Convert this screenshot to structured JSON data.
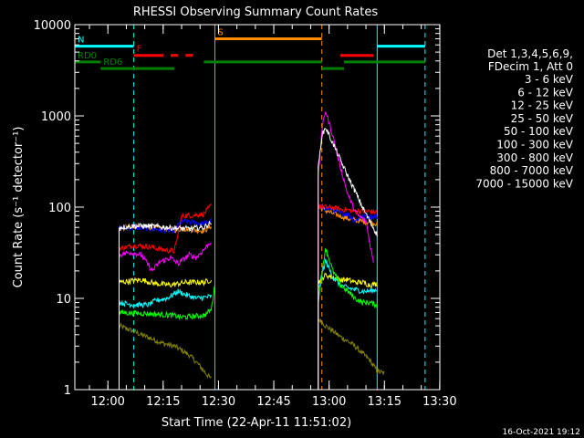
{
  "chart_data": {
    "type": "line",
    "title": "RHESSI Observing Summary Count Rates",
    "xlabel": "Start Time (22-Apr-11 11:51:02)",
    "ylabel": "Count Rate (s⁻¹ detector⁻¹)",
    "ylog": true,
    "ylim": [
      1,
      10000
    ],
    "xlim_minutes": [
      0,
      99
    ],
    "y_tick_labels": [
      "1",
      "10",
      "100",
      "1000",
      "10000"
    ],
    "x_tick_labels": [
      "12:00",
      "12:15",
      "12:30",
      "12:45",
      "13:00",
      "13:15",
      "13:30"
    ],
    "legend_header": [
      "Det 1,3,4,5,6,9,",
      "FDecim 1, Att 0"
    ],
    "footer_date": "16-Oct-2021 19:12",
    "flags": [
      {
        "label": "N",
        "color": "#00ffff",
        "value": 5800,
        "segments": [
          [
            0,
            16
          ],
          [
            82,
            95
          ]
        ]
      },
      {
        "label": "F",
        "color": "#ff0000",
        "value": 4600,
        "segments": [
          [
            16,
            24
          ],
          [
            26,
            28
          ],
          [
            30,
            32
          ],
          [
            72,
            81
          ]
        ]
      },
      {
        "label": "S",
        "color": "#ff8c00",
        "value": 7000,
        "segments": [
          [
            38,
            67
          ]
        ]
      },
      {
        "label": "RD0",
        "color": "#008000",
        "value": 3900,
        "segments": [
          [
            0,
            7
          ],
          [
            35,
            67
          ],
          [
            73,
            95
          ]
        ]
      },
      {
        "label": "RD6",
        "color": "#008000",
        "value": 3300,
        "segments": [
          [
            7,
            27
          ],
          [
            67,
            73
          ]
        ]
      }
    ],
    "verticals": [
      {
        "minute": 0,
        "color": "#00ffff",
        "dashed": false
      },
      {
        "minute": 16,
        "color": "#00ffff",
        "dashed": true
      },
      {
        "minute": 38,
        "color": "#ff8c00",
        "dashed": false
      },
      {
        "minute": 67,
        "color": "#ff8c00",
        "dashed": true
      },
      {
        "minute": 82,
        "color": "#00ffff",
        "dashed": false
      },
      {
        "minute": 95,
        "color": "#00ffff",
        "dashed": true
      }
    ],
    "series": [
      {
        "name": "3 - 6 keV",
        "color": "#ffffff",
        "seg1": [
          [
            12,
            60
          ],
          [
            16,
            62
          ],
          [
            20,
            62
          ],
          [
            25,
            60
          ],
          [
            30,
            58
          ],
          [
            35,
            60
          ],
          [
            37,
            68
          ]
        ],
        "seg2": [
          [
            66,
            260
          ],
          [
            67,
            600
          ],
          [
            68,
            750
          ],
          [
            70,
            500
          ],
          [
            72,
            330
          ],
          [
            74,
            220
          ],
          [
            76,
            150
          ],
          [
            78,
            100
          ],
          [
            80,
            70
          ],
          [
            82,
            50
          ]
        ]
      },
      {
        "name": "6 - 12 keV",
        "color": "#ff00ff",
        "seg1": [
          [
            12,
            30
          ],
          [
            15,
            32
          ],
          [
            18,
            30
          ],
          [
            21,
            20
          ],
          [
            23,
            25
          ],
          [
            26,
            28
          ],
          [
            28,
            24
          ],
          [
            31,
            30
          ],
          [
            33,
            28
          ],
          [
            36,
            38
          ],
          [
            37,
            42
          ]
        ],
        "seg2": [
          [
            66,
            200
          ],
          [
            67,
            700
          ],
          [
            68,
            1150
          ],
          [
            70,
            600
          ],
          [
            72,
            280
          ],
          [
            74,
            140
          ],
          [
            76,
            90
          ],
          [
            77,
            80
          ],
          [
            79,
            70
          ],
          [
            80,
            40
          ],
          [
            81,
            25
          ]
        ]
      },
      {
        "name": "12 - 25 keV",
        "color": "#00ff00",
        "seg1": [
          [
            12,
            7
          ],
          [
            20,
            6.8
          ],
          [
            27,
            6.5
          ],
          [
            29,
            6.2
          ],
          [
            35,
            6.5
          ],
          [
            37,
            7.5
          ],
          [
            38,
            14
          ]
        ],
        "seg2": [
          [
            66,
            9
          ],
          [
            68,
            36
          ],
          [
            70,
            20
          ],
          [
            72,
            14
          ],
          [
            74,
            12
          ],
          [
            76,
            10
          ],
          [
            78,
            9
          ],
          [
            80,
            9
          ],
          [
            82,
            8.5
          ]
        ]
      },
      {
        "name": "25 - 50 keV",
        "color": "#00ffff",
        "seg1": [
          [
            12,
            9
          ],
          [
            16,
            8.5
          ],
          [
            20,
            8.5
          ],
          [
            22,
            9.5
          ],
          [
            25,
            10
          ],
          [
            28,
            12
          ],
          [
            30,
            11
          ],
          [
            33,
            10
          ],
          [
            37,
            10.5
          ]
        ],
        "seg2": [
          [
            66,
            12
          ],
          [
            68,
            26
          ],
          [
            70,
            17
          ],
          [
            72,
            14
          ],
          [
            74,
            13
          ],
          [
            76,
            12.5
          ],
          [
            78,
            12
          ],
          [
            80,
            12
          ],
          [
            82,
            12.5
          ]
        ]
      },
      {
        "name": "50 - 100 keV",
        "color": "#ffff00",
        "seg1": [
          [
            12,
            15
          ],
          [
            18,
            16
          ],
          [
            22,
            14.5
          ],
          [
            26,
            14
          ],
          [
            30,
            15
          ],
          [
            35,
            15
          ],
          [
            37,
            16
          ]
        ],
        "seg2": [
          [
            66,
            15
          ],
          [
            68,
            18
          ],
          [
            70,
            17
          ],
          [
            72,
            16
          ],
          [
            74,
            16
          ],
          [
            76,
            15
          ],
          [
            78,
            15
          ],
          [
            80,
            14
          ],
          [
            82,
            14.5
          ]
        ]
      },
      {
        "name": "100 - 300 keV",
        "color": "#ff0000",
        "seg1": [
          [
            12,
            35
          ],
          [
            16,
            38
          ],
          [
            20,
            37
          ],
          [
            24,
            34
          ],
          [
            27,
            33
          ],
          [
            29,
            80
          ],
          [
            33,
            82
          ],
          [
            35,
            84
          ],
          [
            37,
            105
          ]
        ],
        "seg2": [
          [
            66,
            105
          ],
          [
            68,
            100
          ],
          [
            70,
            98
          ],
          [
            72,
            95
          ],
          [
            74,
            93
          ],
          [
            76,
            90
          ],
          [
            78,
            90
          ],
          [
            80,
            90
          ],
          [
            82,
            88
          ]
        ]
      },
      {
        "name": "300 - 800 keV",
        "color": "#0000ff",
        "seg1": [
          [
            12,
            58
          ],
          [
            16,
            60
          ],
          [
            20,
            58
          ],
          [
            24,
            56
          ],
          [
            27,
            55
          ],
          [
            29,
            70
          ],
          [
            33,
            68
          ],
          [
            35,
            65
          ],
          [
            37,
            72
          ]
        ],
        "seg2": [
          [
            66,
            100
          ],
          [
            68,
            97
          ],
          [
            70,
            95
          ],
          [
            72,
            85
          ],
          [
            74,
            85
          ],
          [
            76,
            70
          ],
          [
            78,
            80
          ],
          [
            80,
            78
          ],
          [
            82,
            78
          ]
        ]
      },
      {
        "name": "800 - 7000 keV",
        "color": "#ff8c00",
        "seg1": [
          [
            12,
            58
          ],
          [
            16,
            62
          ],
          [
            20,
            60
          ],
          [
            24,
            58
          ],
          [
            27,
            56
          ],
          [
            29,
            58
          ],
          [
            33,
            56
          ],
          [
            35,
            55
          ],
          [
            37,
            62
          ]
        ],
        "seg2": [
          [
            66,
            100
          ],
          [
            68,
            92
          ],
          [
            70,
            85
          ],
          [
            72,
            80
          ],
          [
            74,
            75
          ],
          [
            76,
            72
          ],
          [
            78,
            70
          ],
          [
            80,
            68
          ],
          [
            82,
            66
          ]
        ]
      },
      {
        "name": "7000 - 15000 keV",
        "color": "#808000",
        "seg1": [
          [
            12,
            5
          ],
          [
            15,
            4.5
          ],
          [
            18,
            4
          ],
          [
            21,
            3.6
          ],
          [
            24,
            3.2
          ],
          [
            27,
            3.0
          ],
          [
            29,
            2.7
          ],
          [
            31,
            2.4
          ],
          [
            33,
            2.0
          ],
          [
            35,
            1.6
          ],
          [
            37,
            1.3
          ]
        ],
        "seg2": [
          [
            66,
            6
          ],
          [
            68,
            5
          ],
          [
            70,
            4.4
          ],
          [
            72,
            3.8
          ],
          [
            74,
            3.4
          ],
          [
            76,
            3.0
          ],
          [
            78,
            2.5
          ],
          [
            80,
            2.1
          ],
          [
            82,
            1.6
          ],
          [
            84,
            1.5
          ]
        ]
      }
    ]
  }
}
